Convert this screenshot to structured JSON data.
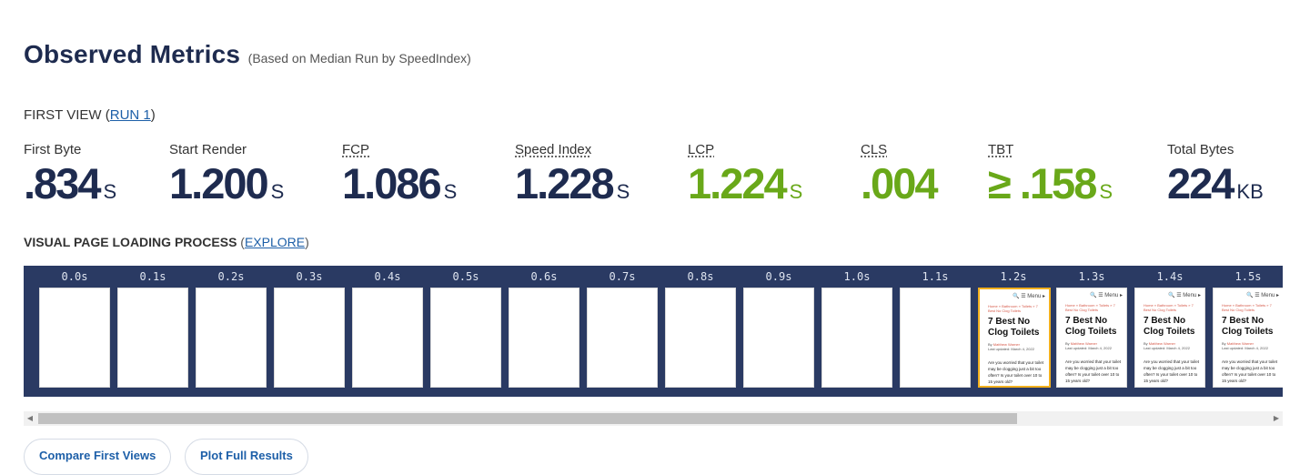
{
  "header": {
    "title": "Observed Metrics",
    "subtitle": "(Based on Median Run by SpeedIndex)"
  },
  "first_view": {
    "label": "FIRST VIEW (",
    "run_link": "RUN 1",
    "close": ")"
  },
  "metrics": [
    {
      "label": "First Byte",
      "value": ".834",
      "unit": "S",
      "status": "neutral"
    },
    {
      "label": "Start Render",
      "value": "1.200",
      "unit": "S",
      "status": "neutral"
    },
    {
      "label": "FCP",
      "value": "1.086",
      "unit": "S",
      "status": "neutral"
    },
    {
      "label": "Speed Index",
      "value": "1.228",
      "unit": "S",
      "status": "neutral"
    },
    {
      "label": "LCP",
      "value": "1.224",
      "unit": "S",
      "status": "good"
    },
    {
      "label": "CLS",
      "value": ".004",
      "unit": "",
      "status": "good"
    },
    {
      "label": "TBT",
      "value": "≥ .158",
      "unit": "S",
      "status": "good"
    },
    {
      "label": "Total Bytes",
      "value": "224",
      "unit": "KB",
      "status": "neutral"
    }
  ],
  "visual_process": {
    "label": "VISUAL PAGE LOADING PROCESS",
    "open": "(",
    "explore_link": "EXPLORE",
    "close": ")"
  },
  "filmstrip": {
    "times": [
      "0.0s",
      "0.1s",
      "0.2s",
      "0.3s",
      "0.4s",
      "0.5s",
      "0.6s",
      "0.7s",
      "0.8s",
      "0.9s",
      "1.0s",
      "1.1s",
      "1.2s",
      "1.3s",
      "1.4s",
      "1.5s"
    ],
    "selected_index": 12,
    "rendered_from_index": 12,
    "preview": {
      "topbar": "🔍 ☰ Menu ▸",
      "breadcrumb": "Home » Bathroom » Toilets » 7 Best No Clog Toilets",
      "heading": "7 Best No Clog Toilets",
      "byline_prefix": "By",
      "author": "Matthew Warner",
      "updated": "Last updated: March 4, 2022",
      "excerpt": "Are you worried that your toilet may be clogging just a bit too often? Is your toilet over 10 to 15 years old?"
    }
  },
  "scrollbar": {
    "left_arrow": "◀",
    "right_arrow": "▶"
  },
  "buttons": {
    "compare": "Compare First Views",
    "plot": "Plot Full Results"
  },
  "colors": {
    "navy": "#1e2b4f",
    "good_green": "#69a819",
    "filmstrip_bg": "#2a3a63",
    "link_blue": "#1d5fa8",
    "selected_frame": "#f2b01e"
  }
}
